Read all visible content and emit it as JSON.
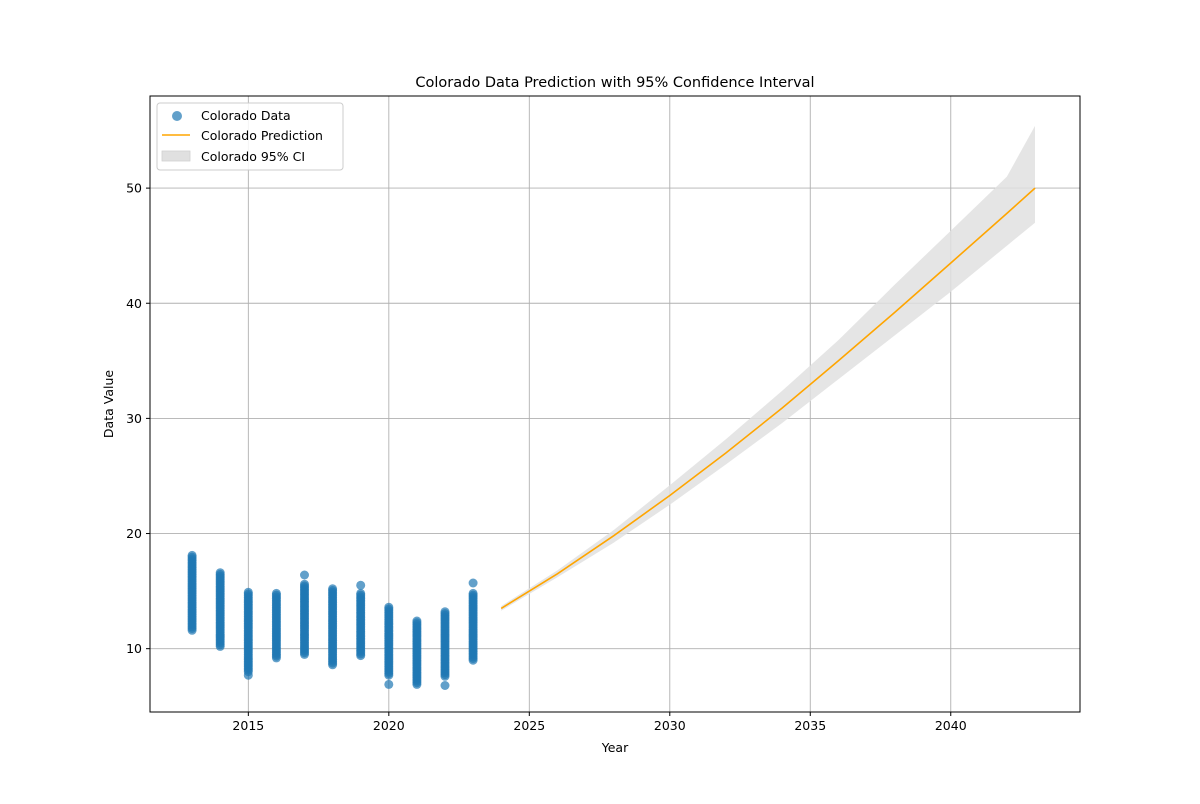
{
  "chart_data": {
    "type": "scatter",
    "title": "Colorado Data Prediction with 95% Confidence Interval",
    "xlabel": "Year",
    "ylabel": "Data Value",
    "xlim": [
      2011.5,
      2044.6
    ],
    "ylim": [
      4.5,
      58.0
    ],
    "xticks": [
      2015,
      2020,
      2025,
      2030,
      2035,
      2040
    ],
    "yticks": [
      10,
      20,
      30,
      40,
      50
    ],
    "grid": true,
    "legend": {
      "position": "upper-left",
      "entries": [
        "Colorado Data",
        "Colorado Prediction",
        "Colorado 95% CI"
      ]
    },
    "colors": {
      "data": "#1f77b4",
      "prediction": "#ffa500",
      "ci": "#e0e0e0"
    },
    "scatter": {
      "name": "Colorado Data",
      "ranges": [
        {
          "year": 2013,
          "min": 11.6,
          "max": 18.1,
          "outliers": []
        },
        {
          "year": 2014,
          "min": 10.2,
          "max": 16.6,
          "outliers": []
        },
        {
          "year": 2015,
          "min": 8.0,
          "max": 14.9,
          "outliers": [
            7.7
          ]
        },
        {
          "year": 2016,
          "min": 9.2,
          "max": 14.8,
          "outliers": []
        },
        {
          "year": 2017,
          "min": 9.5,
          "max": 15.6,
          "outliers": [
            16.4
          ]
        },
        {
          "year": 2018,
          "min": 8.6,
          "max": 15.2,
          "outliers": []
        },
        {
          "year": 2019,
          "min": 9.4,
          "max": 14.8,
          "outliers": [
            15.5
          ]
        },
        {
          "year": 2020,
          "min": 7.7,
          "max": 13.6,
          "outliers": [
            6.9
          ]
        },
        {
          "year": 2021,
          "min": 6.9,
          "max": 12.4,
          "outliers": []
        },
        {
          "year": 2022,
          "min": 7.6,
          "max": 13.2,
          "outliers": [
            6.8
          ]
        },
        {
          "year": 2023,
          "min": 9.0,
          "max": 14.8,
          "outliers": [
            15.7
          ]
        }
      ]
    },
    "prediction": {
      "name": "Colorado Prediction",
      "x": [
        2024,
        2026,
        2028,
        2030,
        2032,
        2034,
        2036,
        2038,
        2040,
        2042,
        2043
      ],
      "y": [
        13.5,
        16.5,
        19.8,
        23.3,
        27.0,
        30.9,
        35.0,
        39.2,
        43.5,
        47.8,
        50.0
      ],
      "ci_lower": [
        13.3,
        16.2,
        19.2,
        22.5,
        26.0,
        29.6,
        33.4,
        37.2,
        41.0,
        45.0,
        47.0
      ],
      "ci_upper": [
        13.7,
        16.8,
        20.3,
        24.2,
        28.2,
        32.4,
        36.8,
        41.6,
        46.3,
        51.0,
        55.4
      ]
    }
  }
}
